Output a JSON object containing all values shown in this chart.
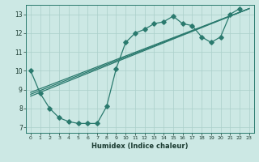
{
  "title": "",
  "xlabel": "Humidex (Indice chaleur)",
  "background_color": "#cce8e4",
  "grid_color": "#aacfca",
  "line_color": "#2a7a6e",
  "xlim": [
    -0.5,
    23.5
  ],
  "ylim": [
    6.7,
    13.5
  ],
  "xticks": [
    0,
    1,
    2,
    3,
    4,
    5,
    6,
    7,
    8,
    9,
    10,
    11,
    12,
    13,
    14,
    15,
    16,
    17,
    18,
    19,
    20,
    21,
    22,
    23
  ],
  "yticks": [
    7,
    8,
    9,
    10,
    11,
    12,
    13
  ],
  "line1_x": [
    0,
    1,
    2,
    3,
    4,
    5,
    6,
    7,
    8,
    9,
    10,
    11,
    12,
    13,
    14,
    15,
    16,
    17,
    18,
    19,
    20,
    21,
    22
  ],
  "line1_y": [
    10.0,
    8.8,
    8.0,
    7.5,
    7.3,
    7.2,
    7.2,
    7.2,
    8.1,
    10.1,
    11.5,
    12.0,
    12.2,
    12.5,
    12.6,
    12.9,
    12.5,
    12.4,
    11.8,
    11.5,
    11.8,
    13.0,
    13.3
  ],
  "line2_x": [
    0,
    23
  ],
  "line2_y": [
    8.85,
    13.3
  ],
  "line3_x": [
    0,
    23
  ],
  "line3_y": [
    8.75,
    13.3
  ],
  "line4_x": [
    0,
    23
  ],
  "line4_y": [
    8.65,
    13.3
  ]
}
